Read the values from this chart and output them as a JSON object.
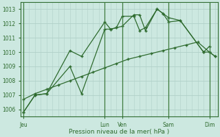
{
  "bg_color": "#cce8e0",
  "grid_color": "#b0d0c8",
  "line_color": "#2d6a2d",
  "xlabel": "Pression niveau de la mer( hPa )",
  "xtick_labels": [
    "Jeu",
    "Lun",
    "Ven",
    "Sam",
    "Dim"
  ],
  "xtick_positions": [
    0,
    14,
    17,
    25,
    32
  ],
  "xlim": [
    -0.5,
    33.5
  ],
  "ylim": [
    1005.5,
    1013.5
  ],
  "ytick_values": [
    1006,
    1007,
    1008,
    1009,
    1010,
    1011,
    1012,
    1013
  ],
  "vlines": [
    0,
    14,
    17,
    25,
    32
  ],
  "series": [
    {
      "x": [
        0,
        2,
        4,
        8,
        10,
        14,
        15,
        16,
        17,
        19,
        20,
        21,
        23,
        24,
        25,
        27,
        31,
        32
      ],
      "y": [
        1005.8,
        1007.0,
        1007.1,
        1010.1,
        1009.7,
        1012.1,
        1011.6,
        1011.7,
        1012.5,
        1012.5,
        1011.5,
        1011.7,
        1013.0,
        1012.7,
        1012.1,
        1012.2,
        1010.0,
        1010.4
      ]
    },
    {
      "x": [
        0,
        2,
        4,
        8,
        10,
        14,
        15,
        16,
        17,
        19,
        20,
        21,
        23,
        24,
        25,
        27,
        31,
        32,
        33
      ],
      "y": [
        1005.8,
        1007.0,
        1007.1,
        1009.0,
        1007.1,
        1011.6,
        1011.6,
        1011.7,
        1011.8,
        1012.6,
        1012.6,
        1011.5,
        1013.0,
        1012.7,
        1012.4,
        1012.2,
        1010.0,
        1010.0,
        1009.7
      ]
    },
    {
      "x": [
        0,
        2,
        4,
        6,
        8,
        10,
        12,
        14,
        16,
        18,
        20,
        22,
        24,
        26,
        28,
        30,
        32,
        33
      ],
      "y": [
        1006.7,
        1007.1,
        1007.4,
        1007.7,
        1008.0,
        1008.3,
        1008.6,
        1008.9,
        1009.2,
        1009.5,
        1009.7,
        1009.9,
        1010.1,
        1010.3,
        1010.5,
        1010.7,
        1010.0,
        1009.7
      ]
    }
  ]
}
